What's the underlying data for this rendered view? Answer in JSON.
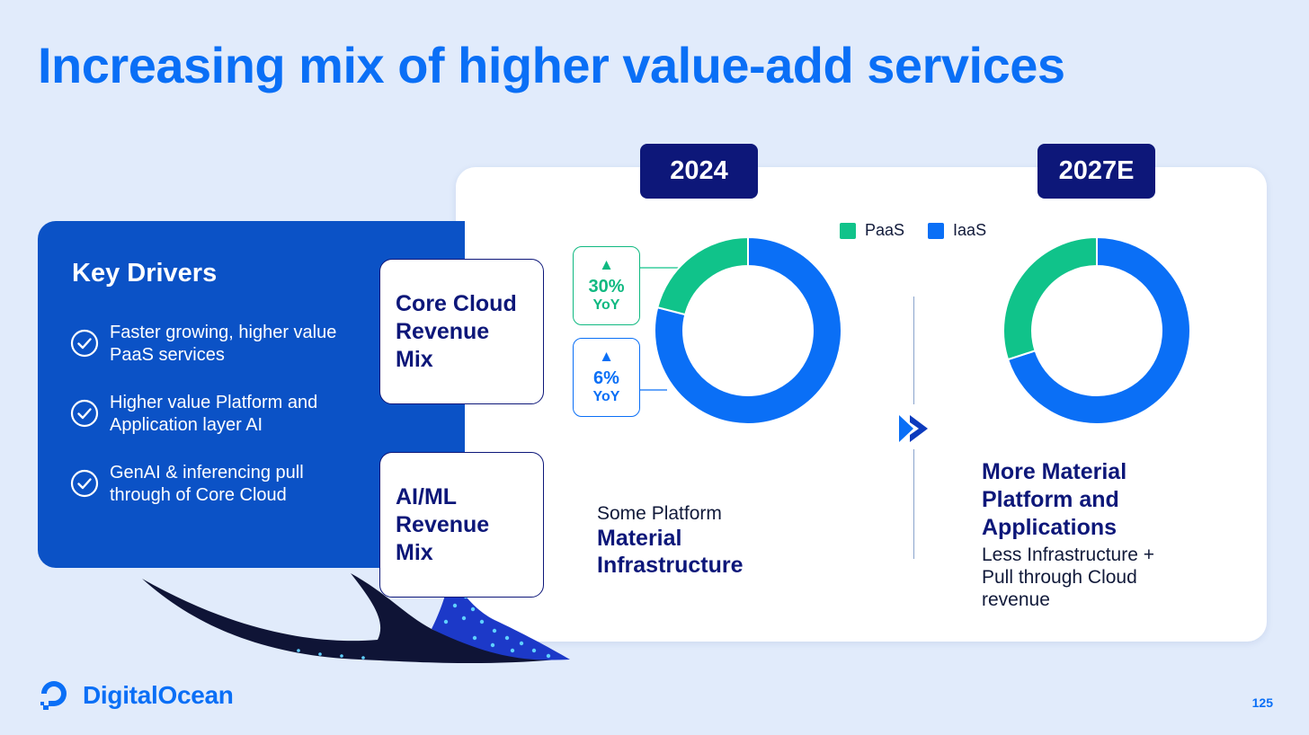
{
  "title": "Increasing mix of higher value-add services",
  "key_drivers": {
    "heading": "Key Drivers",
    "items": [
      "Faster growing, higher value PaaS services",
      "Higher value Platform and Application layer AI",
      "GenAI & inferencing pull through of Core Cloud"
    ]
  },
  "mix_labels": {
    "core_cloud": "Core Cloud Revenue Mix",
    "aiml": "AI/ML Revenue Mix"
  },
  "years": [
    "2024",
    "2027E"
  ],
  "yoy": [
    {
      "pct": "30%",
      "unit": "YoY",
      "series": "PaaS"
    },
    {
      "pct": "6%",
      "unit": "YoY",
      "series": "IaaS"
    }
  ],
  "captions_2024": {
    "light": "Some Platform",
    "bold": "Material Infrastructure"
  },
  "captions_2027": {
    "bold": "More Material Platform and Applications",
    "light": "Less Infrastructure + Pull through Cloud revenue"
  },
  "colors": {
    "paas": "#10c38a",
    "iaas": "#0a6ff6",
    "navy": "#0d1779",
    "brand_blue": "#0a6ff6"
  },
  "chart_data": [
    {
      "type": "pie",
      "title": "2024",
      "categories": [
        "PaaS",
        "IaaS"
      ],
      "values": [
        21,
        79
      ],
      "legend": "top"
    },
    {
      "type": "pie",
      "title": "2027E",
      "categories": [
        "PaaS",
        "IaaS"
      ],
      "values": [
        30,
        70
      ],
      "legend": "top"
    }
  ],
  "logo_text": "DigitalOcean",
  "page_number": "125"
}
